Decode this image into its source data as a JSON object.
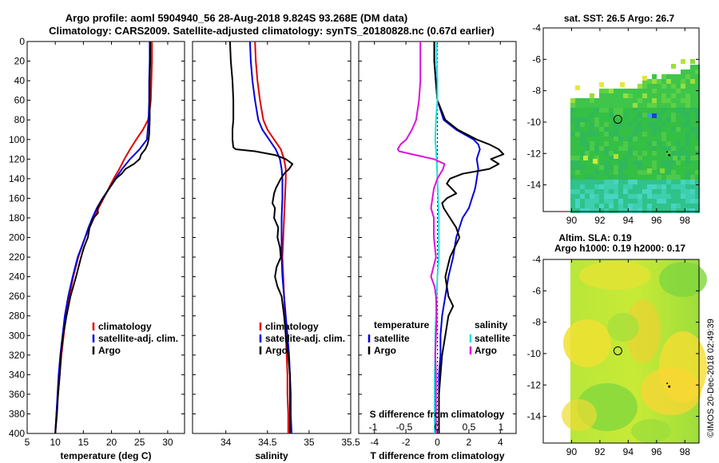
{
  "header": {
    "line1": "Argo profile: aoml 5904940_56 28-Aug-2018 9.824S 93.268E (DM data)",
    "line2": "Climatology: CARS2009. Satellite-adjusted climatology: synTS_20180828.nc (0.67d earlier)"
  },
  "credit": "©IMOS 20-Dec-2018 02:49:39",
  "colors": {
    "climatology": "#e00000",
    "satellite": "#0000dd",
    "argo": "#000000",
    "sal_sat": "#22dddd",
    "sal_argo": "#dd11dd"
  },
  "chart_data": [
    {
      "type": "line",
      "name": "temperature",
      "xlabel": "temperature (deg C)",
      "ylabel": "depth",
      "xlim": [
        5,
        33
      ],
      "ylim": [
        400,
        0
      ],
      "xticks": [
        5,
        10,
        15,
        20,
        25,
        30
      ],
      "yticks": [
        0,
        20,
        40,
        60,
        80,
        100,
        120,
        140,
        160,
        180,
        200,
        220,
        240,
        260,
        280,
        300,
        320,
        340,
        360,
        380,
        400
      ],
      "legend": [
        "climatology",
        "satellite-adj. clim.",
        "Argo"
      ],
      "series": [
        {
          "name": "climatology",
          "depth": [
            0,
            20,
            40,
            60,
            70,
            80,
            90,
            100,
            110,
            120,
            130,
            140,
            150,
            160,
            170,
            180,
            190,
            200,
            220,
            240,
            260,
            280,
            300,
            320,
            340,
            360,
            380,
            400
          ],
          "values": [
            27.2,
            27.2,
            27.1,
            27.0,
            26.8,
            26.5,
            25.6,
            24.4,
            23.3,
            22.3,
            21.4,
            20.4,
            19.5,
            18.6,
            17.7,
            16.9,
            16.1,
            15.3,
            14.1,
            13.2,
            12.5,
            11.9,
            11.5,
            11.1,
            10.8,
            10.5,
            10.2,
            10.0
          ]
        },
        {
          "name": "satellite-adj. clim.",
          "depth": [
            0,
            20,
            40,
            60,
            80,
            100,
            110,
            120,
            130,
            140,
            150,
            160,
            170,
            180,
            190,
            200,
            220,
            240,
            260,
            280,
            300,
            320,
            340,
            360,
            380,
            400
          ],
          "values": [
            26.8,
            26.8,
            26.7,
            26.7,
            26.6,
            26.3,
            25.0,
            23.3,
            21.9,
            20.7,
            19.6,
            18.4,
            17.4,
            16.6,
            15.9,
            15.3,
            14.0,
            13.1,
            12.3,
            11.7,
            11.3,
            10.9,
            10.6,
            10.4,
            10.2,
            10.0
          ]
        },
        {
          "name": "Argo",
          "depth": [
            0,
            20,
            40,
            60,
            80,
            95,
            100,
            105,
            110,
            115,
            120,
            125,
            130,
            135,
            140,
            150,
            160,
            170,
            175,
            180,
            190,
            200,
            210,
            220,
            240,
            260,
            280,
            300,
            320,
            340,
            360,
            380,
            400
          ],
          "values": [
            26.9,
            26.9,
            26.8,
            26.8,
            26.8,
            26.7,
            26.6,
            26.4,
            26.0,
            25.3,
            25.0,
            24.0,
            22.5,
            21.8,
            20.8,
            19.6,
            18.5,
            17.5,
            17.6,
            16.8,
            16.1,
            15.8,
            15.1,
            14.6,
            13.7,
            12.7,
            12.0,
            11.4,
            11.0,
            10.8,
            10.5,
            10.3,
            10.0
          ]
        }
      ]
    },
    {
      "type": "line",
      "name": "salinity",
      "xlabel": "salinity",
      "ylabel": "depth",
      "xlim": [
        33.6,
        35.5
      ],
      "ylim": [
        400,
        0
      ],
      "xticks": [
        34,
        34.5,
        35,
        35.5
      ],
      "yticks": [
        0,
        20,
        40,
        60,
        80,
        100,
        120,
        140,
        160,
        180,
        200,
        220,
        240,
        260,
        280,
        300,
        320,
        340,
        360,
        380,
        400
      ],
      "legend": [
        "climatology",
        "satellite-adj. clim.",
        "Argo"
      ],
      "series": [
        {
          "name": "climatology",
          "depth": [
            0,
            20,
            40,
            60,
            80,
            90,
            100,
            110,
            120,
            130,
            140,
            160,
            180,
            200,
            220,
            240,
            260,
            280,
            300,
            320,
            340,
            360,
            380,
            400
          ],
          "values": [
            34.35,
            34.36,
            34.38,
            34.41,
            34.45,
            34.5,
            34.58,
            34.66,
            34.7,
            34.72,
            34.72,
            34.71,
            34.7,
            34.69,
            34.68,
            34.69,
            34.7,
            34.71,
            34.72,
            34.73,
            34.74,
            34.74,
            34.75,
            34.75
          ]
        },
        {
          "name": "satellite-adj. clim.",
          "depth": [
            0,
            20,
            40,
            60,
            80,
            90,
            100,
            110,
            120,
            130,
            140,
            160,
            180,
            200,
            220,
            240,
            260,
            280,
            300,
            320,
            340,
            360,
            380,
            400
          ],
          "values": [
            34.29,
            34.3,
            34.32,
            34.35,
            34.39,
            34.44,
            34.52,
            34.6,
            34.65,
            34.67,
            34.68,
            34.68,
            34.67,
            34.67,
            34.67,
            34.68,
            34.7,
            34.72,
            34.74,
            34.76,
            34.77,
            34.78,
            34.78,
            34.79
          ]
        },
        {
          "name": "Argo",
          "depth": [
            0,
            20,
            40,
            60,
            80,
            90,
            100,
            108,
            110,
            112,
            116,
            120,
            125,
            130,
            135,
            140,
            145,
            150,
            155,
            160,
            165,
            170,
            180,
            190,
            200,
            210,
            220,
            230,
            240,
            250,
            260,
            280,
            300,
            320,
            340,
            360,
            380,
            400
          ],
          "values": [
            34.05,
            34.06,
            34.08,
            34.09,
            34.09,
            34.08,
            34.08,
            34.09,
            34.12,
            34.35,
            34.6,
            34.72,
            34.8,
            34.76,
            34.7,
            34.66,
            34.63,
            34.6,
            34.58,
            34.57,
            34.56,
            34.59,
            34.58,
            34.63,
            34.62,
            34.65,
            34.66,
            34.61,
            34.59,
            34.62,
            34.67,
            34.7,
            34.72,
            34.75,
            34.77,
            34.77,
            34.77,
            34.77
          ]
        }
      ]
    },
    {
      "type": "line",
      "name": "difference",
      "xlabel": "T difference from climatology",
      "ylabel": "depth",
      "xlim": [
        -5,
        5
      ],
      "ylim": [
        400,
        0
      ],
      "xticks": [
        -4,
        -2,
        0,
        2,
        4
      ],
      "secondary_xlabel": "S difference from climatology",
      "secondary_xticks": [
        "-1",
        "-0.5",
        "0",
        "0.5",
        "1"
      ],
      "yticks": [
        0,
        20,
        40,
        60,
        80,
        100,
        120,
        140,
        160,
        180,
        200,
        220,
        240,
        260,
        280,
        300,
        320,
        340,
        360,
        380,
        400
      ],
      "legend_left_title": "temperature",
      "legend_left": [
        "satellite",
        "Argo"
      ],
      "legend_right_title": "salinity",
      "legend_right": [
        "satellite",
        "Argo"
      ],
      "series": [
        {
          "name": "T satellite",
          "depth": [
            0,
            20,
            40,
            60,
            80,
            90,
            100,
            105,
            110,
            115,
            120,
            130,
            140,
            150,
            160,
            170,
            180,
            200,
            220,
            240,
            260,
            280,
            300,
            320,
            340,
            360,
            380,
            400
          ],
          "values": [
            -0.2,
            -0.2,
            -0.1,
            0.0,
            0.4,
            1.2,
            2.3,
            2.6,
            2.7,
            2.6,
            2.5,
            2.6,
            2.5,
            2.4,
            2.2,
            2.0,
            1.6,
            1.2,
            1.0,
            0.7,
            0.5,
            0.3,
            0.2,
            0.2,
            0.1,
            0.1,
            0.1,
            0.1
          ]
        },
        {
          "name": "T Argo",
          "depth": [
            0,
            20,
            40,
            60,
            80,
            90,
            100,
            105,
            110,
            115,
            120,
            125,
            130,
            135,
            140,
            145,
            150,
            155,
            160,
            165,
            170,
            180,
            190,
            200,
            210,
            220,
            240,
            260,
            270,
            280,
            300,
            320,
            340,
            360,
            380,
            400
          ],
          "values": [
            -0.2,
            -0.2,
            -0.1,
            0.0,
            0.5,
            1.3,
            2.5,
            3.3,
            3.9,
            4.2,
            3.4,
            3.9,
            3.3,
            1.6,
            0.8,
            0.6,
            0.9,
            1.2,
            0.6,
            0.3,
            0.4,
            0.8,
            1.2,
            1.4,
            1.1,
            0.8,
            0.5,
            0.7,
            1.0,
            0.7,
            0.5,
            0.3,
            0.2,
            0.1,
            0.1,
            0.1
          ]
        },
        {
          "name": "S satellite",
          "depth": [
            0,
            20,
            40,
            60,
            80,
            100,
            120,
            140,
            160,
            180,
            200,
            220,
            240,
            260,
            280,
            300,
            320,
            340,
            360,
            380,
            400
          ],
          "values": [
            -0.01,
            -0.01,
            0.0,
            0.0,
            -0.02,
            -0.03,
            -0.01,
            0.0,
            0.01,
            0.02,
            0.02,
            0.02,
            0.0,
            -0.01,
            -0.02,
            -0.03,
            -0.03,
            -0.04,
            -0.04,
            -0.04,
            -0.04
          ]
        },
        {
          "name": "S Argo",
          "depth": [
            0,
            20,
            40,
            60,
            80,
            90,
            100,
            105,
            110,
            112,
            116,
            120,
            125,
            130,
            140,
            150,
            160,
            170,
            180,
            200,
            220,
            240,
            250,
            260,
            280,
            300,
            320,
            340,
            360,
            380,
            400
          ],
          "values": [
            -0.24,
            -0.24,
            -0.24,
            -0.26,
            -0.3,
            -0.36,
            -0.44,
            -0.52,
            -0.56,
            -0.54,
            -0.3,
            -0.05,
            0.1,
            0.08,
            0.0,
            -0.05,
            -0.07,
            -0.09,
            -0.05,
            -0.05,
            -0.02,
            -0.09,
            -0.04,
            -0.02,
            -0.01,
            -0.02,
            -0.03,
            -0.02,
            -0.02,
            -0.02,
            -0.02
          ]
        }
      ]
    },
    {
      "type": "heatmap",
      "name": "sst-map",
      "title": "sat. SST: 26.5 Argo: 26.7",
      "xlim": [
        88,
        99
      ],
      "ylim": [
        -15.7,
        -4
      ],
      "xticks": [
        90,
        92,
        94,
        96,
        98
      ],
      "yticks": [
        -4,
        -6,
        -8,
        -10,
        -12,
        -14
      ],
      "argo_position": [
        93.268,
        -9.824
      ]
    },
    {
      "type": "heatmap",
      "name": "sla-map",
      "title": "Altim. SLA: 0.19",
      "subtitle": "Argo h1000: 0.19 h2000: 0.17",
      "xlim": [
        88,
        99
      ],
      "ylim": [
        -15.7,
        -4
      ],
      "xticks": [
        90,
        92,
        94,
        96,
        98
      ],
      "yticks": [
        -4,
        -6,
        -8,
        -10,
        -12,
        -14
      ],
      "argo_position": [
        93.268,
        -9.824
      ]
    }
  ]
}
